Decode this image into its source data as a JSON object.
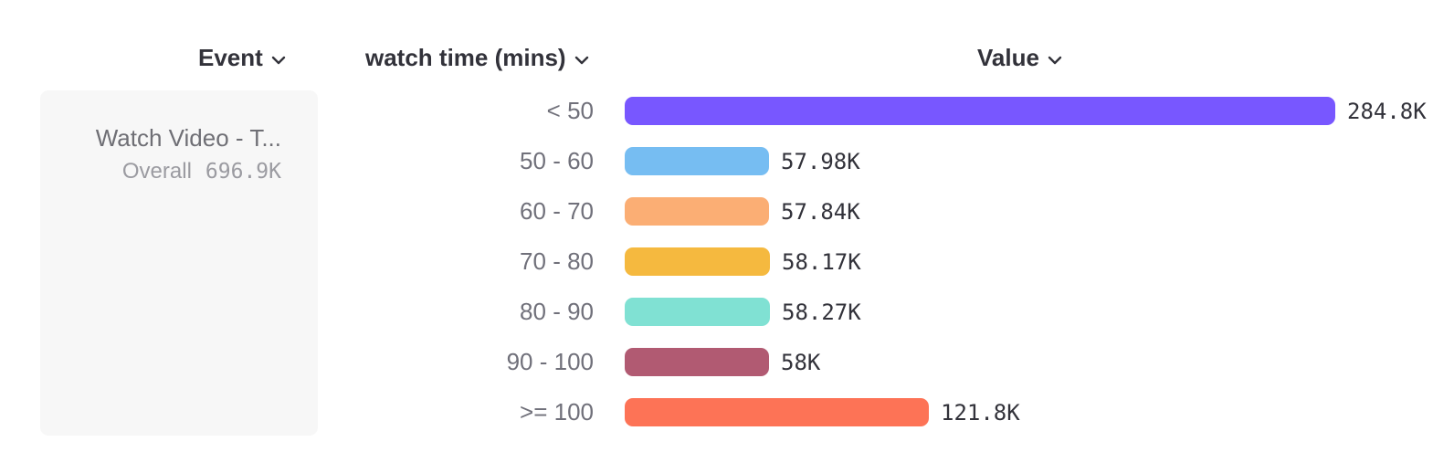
{
  "columns": {
    "event": {
      "label": "Event"
    },
    "breakdown": {
      "label": "watch time (mins)"
    },
    "value": {
      "label": "Value"
    }
  },
  "event_card": {
    "title": "Watch Video - T...",
    "overall_label": "Overall",
    "overall_value": "696.9K",
    "background": "#F7F7F7"
  },
  "icons": {
    "dropdown_chevron": "chevron-down"
  },
  "colors": {
    "header_text": "#32323A",
    "category_text": "#70707A",
    "value_text": "#32323A",
    "card_title_text": "#6F6F75",
    "card_overall_text": "#9B9BA1",
    "card_background": "#F7F7F7",
    "page_background": "#FFFFFF"
  },
  "chart_data": {
    "type": "bar",
    "orientation": "horizontal",
    "title": "",
    "xlabel": "",
    "ylabel": "watch time (mins)",
    "categories": [
      "< 50",
      "50 - 60",
      "60 - 70",
      "70 - 80",
      "80 - 90",
      "90 - 100",
      ">= 100"
    ],
    "values": [
      284800,
      57980,
      57840,
      58170,
      58270,
      58000,
      121800
    ],
    "value_labels": [
      "284.8K",
      "57.98K",
      "57.84K",
      "58.17K",
      "58.27K",
      "58K",
      "121.8K"
    ],
    "bar_colors": [
      "#7857FF",
      "#76BDF2",
      "#FBAE74",
      "#F5B93F",
      "#80E1D3",
      "#B15A72",
      "#FD7356"
    ],
    "total": 696900,
    "total_label": "696.9K",
    "xlim": [
      0,
      292000
    ],
    "grid": false,
    "legend": false
  }
}
